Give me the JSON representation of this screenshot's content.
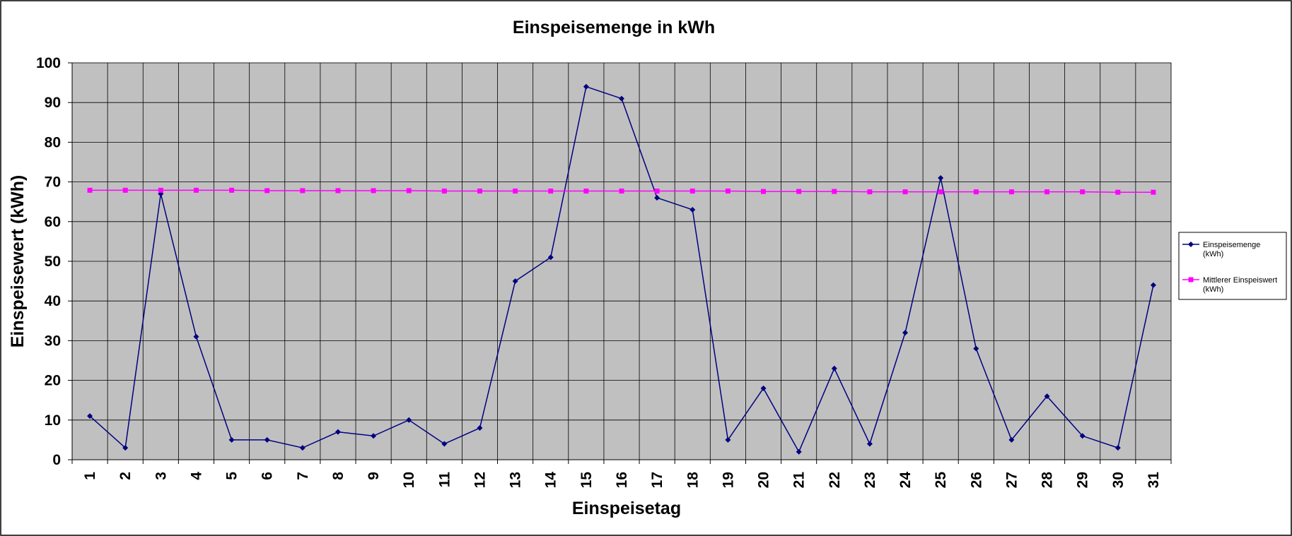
{
  "chart_data": {
    "type": "line",
    "title": "Einspeisemenge in kWh",
    "xlabel": "Einspeisetag",
    "ylabel": "Einspeisewert  (kWh)",
    "categories": [
      "1",
      "2",
      "3",
      "4",
      "5",
      "6",
      "7",
      "8",
      "9",
      "10",
      "11",
      "12",
      "13",
      "14",
      "15",
      "16",
      "17",
      "18",
      "19",
      "20",
      "21",
      "22",
      "23",
      "24",
      "25",
      "26",
      "27",
      "28",
      "29",
      "30",
      "31"
    ],
    "ylim": [
      0,
      100
    ],
    "yticks": [
      "0",
      "10",
      "20",
      "30",
      "40",
      "50",
      "60",
      "70",
      "80",
      "90",
      "100"
    ],
    "grid": true,
    "legend_position": "right",
    "series": [
      {
        "name": "Einspeisemenge (kWh)",
        "legend_lines": [
          "Einspeisemenge",
          "(kWh)"
        ],
        "color": "#000080",
        "marker": "diamond",
        "values": [
          11,
          3,
          67,
          31,
          5,
          5,
          3,
          7,
          6,
          10,
          4,
          8,
          45,
          51,
          94,
          91,
          66,
          63,
          5,
          18,
          2,
          23,
          4,
          32,
          71,
          28,
          5,
          16,
          6,
          3,
          44
        ]
      },
      {
        "name": "Mittlerer Einspeiswert (kWh)",
        "legend_lines": [
          "Mittlerer Einspeiswert",
          "(kWh)"
        ],
        "color": "#ff00ff",
        "marker": "square",
        "values": [
          67.9,
          67.9,
          67.9,
          67.9,
          67.9,
          67.8,
          67.8,
          67.8,
          67.8,
          67.8,
          67.7,
          67.7,
          67.7,
          67.7,
          67.7,
          67.7,
          67.7,
          67.7,
          67.7,
          67.6,
          67.6,
          67.6,
          67.5,
          67.5,
          67.5,
          67.5,
          67.5,
          67.5,
          67.5,
          67.4,
          67.4
        ]
      }
    ]
  }
}
